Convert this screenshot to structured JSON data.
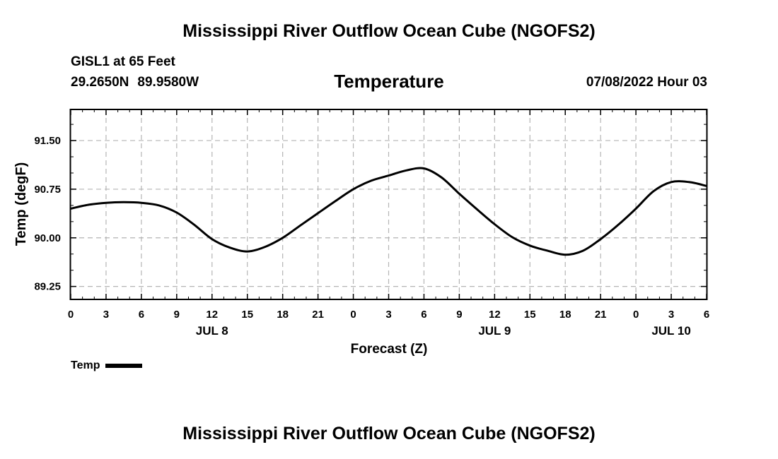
{
  "header": {
    "title": "Mississippi River Outflow Ocean Cube (NGOFS2)",
    "station": "GISL1 at 65 Feet",
    "lat": "29.2650N",
    "lon": "89.9580W",
    "datetime": "07/08/2022 Hour 03"
  },
  "footer": {
    "title": "Mississippi River Outflow Ocean Cube (NGOFS2)"
  },
  "chart_data": {
    "type": "line",
    "title": "Temperature",
    "xlabel": "Forecast (Z)",
    "ylabel": "Temp (degF)",
    "xlim": [
      0,
      54
    ],
    "ylim": [
      89.05,
      91.98
    ],
    "yticks": [
      89.25,
      90.0,
      90.75,
      91.5
    ],
    "ytick_labels": [
      "89.25",
      "90.00",
      "90.75",
      "91.50"
    ],
    "xticks": [
      0,
      3,
      6,
      9,
      12,
      15,
      18,
      21,
      24,
      27,
      30,
      33,
      36,
      39,
      42,
      45,
      48,
      51,
      54
    ],
    "xtick_labels": [
      "0",
      "3",
      "6",
      "9",
      "12",
      "15",
      "18",
      "21",
      "0",
      "3",
      "6",
      "9",
      "12",
      "15",
      "18",
      "21",
      "0",
      "3",
      "6"
    ],
    "day_labels": [
      {
        "x": 12,
        "label": "JUL 8"
      },
      {
        "x": 36,
        "label": "JUL 9"
      },
      {
        "x": 51,
        "label": "JUL 10"
      }
    ],
    "grid": true,
    "legend": "bottom-left",
    "series": [
      {
        "name": "Temp",
        "color": "#000000",
        "x": [
          0,
          1.5,
          3,
          4.5,
          6,
          7.5,
          9,
          10.5,
          12,
          13.5,
          15,
          16.5,
          18,
          19.5,
          21,
          22.5,
          24,
          25.5,
          27,
          28.5,
          30,
          31.5,
          33,
          34.5,
          36,
          37.5,
          39,
          40.5,
          42,
          43.5,
          45,
          46.5,
          48,
          49.5,
          51,
          52.5,
          54
        ],
        "y": [
          90.45,
          90.51,
          90.54,
          90.55,
          90.54,
          90.5,
          90.39,
          90.2,
          89.98,
          89.85,
          89.79,
          89.86,
          90.0,
          90.19,
          90.38,
          90.57,
          90.75,
          90.88,
          90.96,
          91.04,
          91.07,
          90.93,
          90.68,
          90.44,
          90.21,
          90.01,
          89.88,
          89.8,
          89.74,
          89.8,
          89.98,
          90.2,
          90.45,
          90.72,
          90.86,
          90.86,
          90.8
        ]
      }
    ]
  }
}
